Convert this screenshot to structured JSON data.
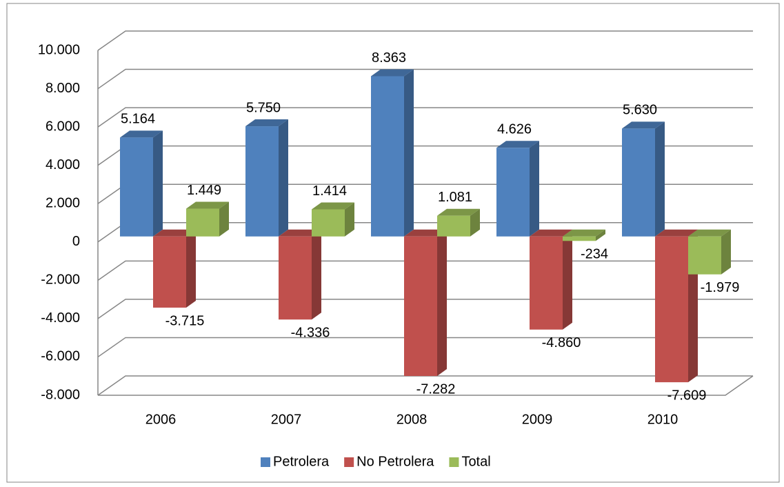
{
  "chart_data": {
    "type": "bar3d",
    "categories": [
      "2006",
      "2007",
      "2008",
      "2009",
      "2010"
    ],
    "series": [
      {
        "name": "Petrolera",
        "color": "#4f81bd",
        "values": [
          5164,
          5750,
          8363,
          4626,
          5630
        ],
        "value_labels": [
          "5.164",
          "5.750",
          "8.363",
          "4.626",
          "5.630"
        ]
      },
      {
        "name": "No Petrolera",
        "color": "#c0504d",
        "values": [
          -3715,
          -4336,
          -7282,
          -4860,
          -7609
        ],
        "value_labels": [
          "-3.715",
          "-4.336",
          "-7.282",
          "-4.860",
          "-7.609"
        ]
      },
      {
        "name": "Total",
        "color": "#9bbb59",
        "values": [
          1449,
          1414,
          1081,
          -234,
          -1979
        ],
        "value_labels": [
          "1.449",
          "1.414",
          "1.081",
          "-234",
          "-1.979"
        ]
      }
    ],
    "ylim": [
      -8000,
      10000
    ],
    "yticks": [
      {
        "value": -8000,
        "label": "-8.000"
      },
      {
        "value": -6000,
        "label": "-6.000"
      },
      {
        "value": -4000,
        "label": "-4.000"
      },
      {
        "value": -2000,
        "label": "-2.000"
      },
      0,
      {
        "value": 2000,
        "label": "2.000"
      },
      {
        "value": 4000,
        "label": "4.000"
      },
      {
        "value": 6000,
        "label": "6.000"
      },
      {
        "value": 8000,
        "label": "8.000"
      },
      {
        "value": 10000,
        "label": "10.000"
      }
    ],
    "grid": true,
    "legend": "bottom"
  }
}
